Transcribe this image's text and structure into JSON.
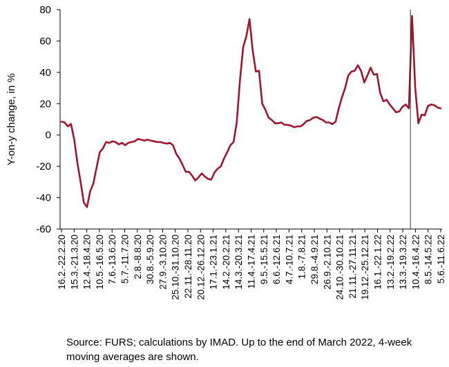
{
  "chart_data": {
    "type": "line",
    "ylabel": "Y-on-y change, in %",
    "ylim": [
      -60,
      80
    ],
    "yticks": [
      80,
      60,
      40,
      20,
      0,
      -20,
      -40,
      -60
    ],
    "grid": false,
    "legend": "none",
    "colors": {
      "line": "#a0142e",
      "axis": "#000000"
    },
    "xtick_labels": [
      "16.2.-22.2.20",
      "15.3.-21.3.20",
      "12.4.-18.4.20",
      "10.5.-16.5.20",
      "7.6.-13.6.20",
      "5.7.-11.7.20",
      "2.8.-8.8.20",
      "30.8.-5.9.20",
      "27.9.-3.10.20",
      "25.10.-31.10.20",
      "22.11.-28.11.20",
      "20.12.-26.12.20",
      "17.1.-23.1.21",
      "14.2.-20.2.21",
      "14.3.-20.3.21",
      "11.4.-17.4.21",
      "9.5.-15.5.21",
      "6.6.-12.6.21",
      "4.7.-10.7.21",
      "1.8.-7.8.21",
      "29.8.-4.9.21",
      "26.9.-2.10.21",
      "24.10.-30.10.21",
      "21.11.-27.11.21",
      "19.12.-25.12.21",
      "16.1.-22.1.22",
      "13.2.-19.2.22",
      "13.3.-19.3.22",
      "10.4.-16.4.22",
      "8.5.-14.5.22",
      "5.6.-11.6.22"
    ],
    "series_values": [
      8.5,
      8,
      5.5,
      7,
      -3,
      -18,
      -30,
      -43,
      -46,
      -36,
      -31,
      -21,
      -11,
      -8.5,
      -4.5,
      -5,
      -4,
      -4.5,
      -6,
      -5,
      -6.5,
      -5,
      -4.5,
      -4,
      -2.5,
      -3,
      -3.5,
      -3,
      -3.5,
      -4,
      -4.5,
      -4.5,
      -5,
      -5.5,
      -5,
      -6.5,
      -12,
      -15,
      -19,
      -23.5,
      -23.5,
      -26,
      -29,
      -27,
      -24.5,
      -26.5,
      -28,
      -28.5,
      -24,
      -21.5,
      -20,
      -15,
      -11,
      -6.5,
      -4.5,
      8,
      35,
      56,
      63,
      74,
      54,
      40.5,
      41,
      20,
      16,
      11,
      9.5,
      7.5,
      7.5,
      8,
      6.5,
      6.5,
      6,
      5,
      5.5,
      5.5,
      7,
      9,
      9.5,
      11,
      11.5,
      10.5,
      9.5,
      8,
      8,
      7,
      8.5,
      17,
      24,
      30,
      38,
      40.5,
      41,
      44.5,
      41,
      33.5,
      38,
      43,
      38.5,
      39,
      27,
      21.5,
      22.5,
      19.5,
      17,
      14.5,
      15,
      18,
      19.5,
      17,
      76,
      30,
      7.5,
      13,
      12.5,
      18.5,
      19.5,
      19,
      17.5,
      17
    ],
    "vertical_marker_after_index": 109,
    "note": "Source: FURS; calculations by IMAD. Up to the end of March 2022, 4-week moving averages are shown."
  }
}
